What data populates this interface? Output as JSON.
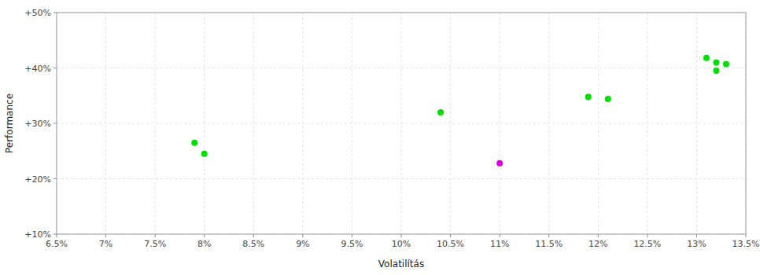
{
  "chart_data": {
    "type": "scatter",
    "xlabel": "Volatilítás",
    "ylabel": "Performance",
    "xlim": [
      0.065,
      0.135
    ],
    "ylim": [
      0.1,
      0.5
    ],
    "xticks": [
      {
        "value": 0.065,
        "label": "6.5%"
      },
      {
        "value": 0.07,
        "label": "7%"
      },
      {
        "value": 0.075,
        "label": "7.5%"
      },
      {
        "value": 0.08,
        "label": "8%"
      },
      {
        "value": 0.085,
        "label": "8.5%"
      },
      {
        "value": 0.09,
        "label": "9%"
      },
      {
        "value": 0.095,
        "label": "9.5%"
      },
      {
        "value": 0.1,
        "label": "10%"
      },
      {
        "value": 0.105,
        "label": "10.5%"
      },
      {
        "value": 0.11,
        "label": "11%"
      },
      {
        "value": 0.115,
        "label": "11.5%"
      },
      {
        "value": 0.12,
        "label": "12%"
      },
      {
        "value": 0.125,
        "label": "12.5%"
      },
      {
        "value": 0.13,
        "label": "13%"
      },
      {
        "value": 0.135,
        "label": "13.5%"
      }
    ],
    "yticks": [
      {
        "value": 0.1,
        "label": "+10%"
      },
      {
        "value": 0.2,
        "label": "+20%"
      },
      {
        "value": 0.3,
        "label": "+30%"
      },
      {
        "value": 0.4,
        "label": "+40%"
      },
      {
        "value": 0.5,
        "label": "+50%"
      }
    ],
    "grid": true,
    "series": [
      {
        "color": "#00dd00",
        "x": [
          0.079,
          0.08,
          0.104,
          0.119,
          0.121,
          0.131,
          0.132,
          0.133,
          0.132
        ],
        "values": [
          0.265,
          0.245,
          0.32,
          0.348,
          0.344,
          0.418,
          0.41,
          0.407,
          0.395
        ]
      },
      {
        "color": "#dd00dd",
        "x": [
          0.11
        ],
        "values": [
          0.228
        ]
      }
    ]
  }
}
